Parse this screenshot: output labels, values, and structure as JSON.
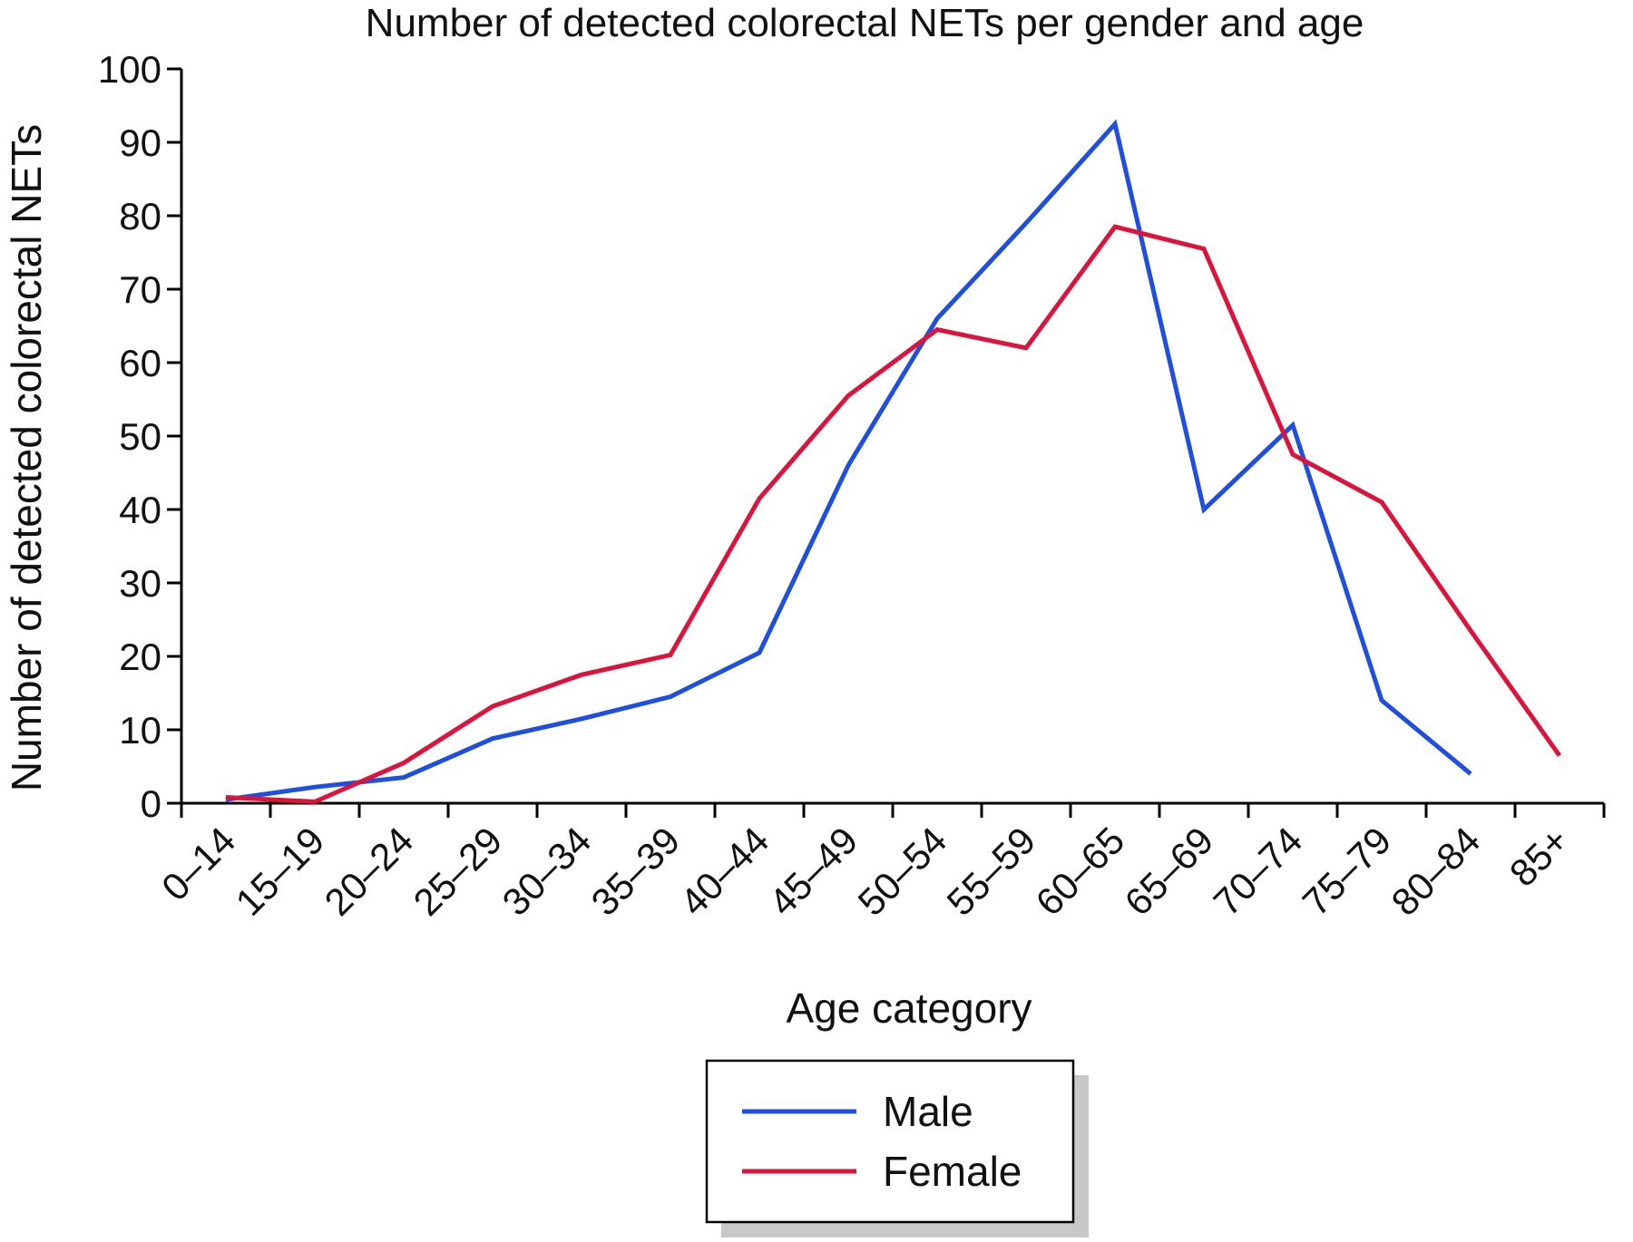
{
  "chart_data": {
    "type": "line",
    "title": "Number of detected colorectal NETs per gender and age",
    "xlabel": "Age category",
    "ylabel": "Number of detected colorectal NETs",
    "categories": [
      "0–14",
      "15–19",
      "20–24",
      "25–29",
      "30–34",
      "35–39",
      "40–44",
      "45–49",
      "50–54",
      "55–59",
      "60–65",
      "65–69",
      "70–74",
      "75–79",
      "80–84",
      "85+"
    ],
    "yticks": [
      "0",
      "10",
      "20",
      "30",
      "40",
      "50",
      "60",
      "70",
      "80",
      "90",
      "100"
    ],
    "ylim": [
      0,
      100
    ],
    "grid": false,
    "legend_position": "bottom",
    "series": [
      {
        "name": "Male",
        "color": "#1f4fe0",
        "values": [
          0.5,
          2.2,
          3.5,
          8.8,
          11.5,
          14.5,
          20.5,
          46.0,
          66.0,
          79.0,
          92.5,
          40.0,
          51.5,
          14.0,
          4.0,
          null
        ]
      },
      {
        "name": "Female",
        "color": "#dc143c",
        "values": [
          0.8,
          0.2,
          5.5,
          13.2,
          17.5,
          20.2,
          41.5,
          55.5,
          64.5,
          62.0,
          78.5,
          75.5,
          47.5,
          41.0,
          23.5,
          6.5
        ]
      }
    ]
  }
}
